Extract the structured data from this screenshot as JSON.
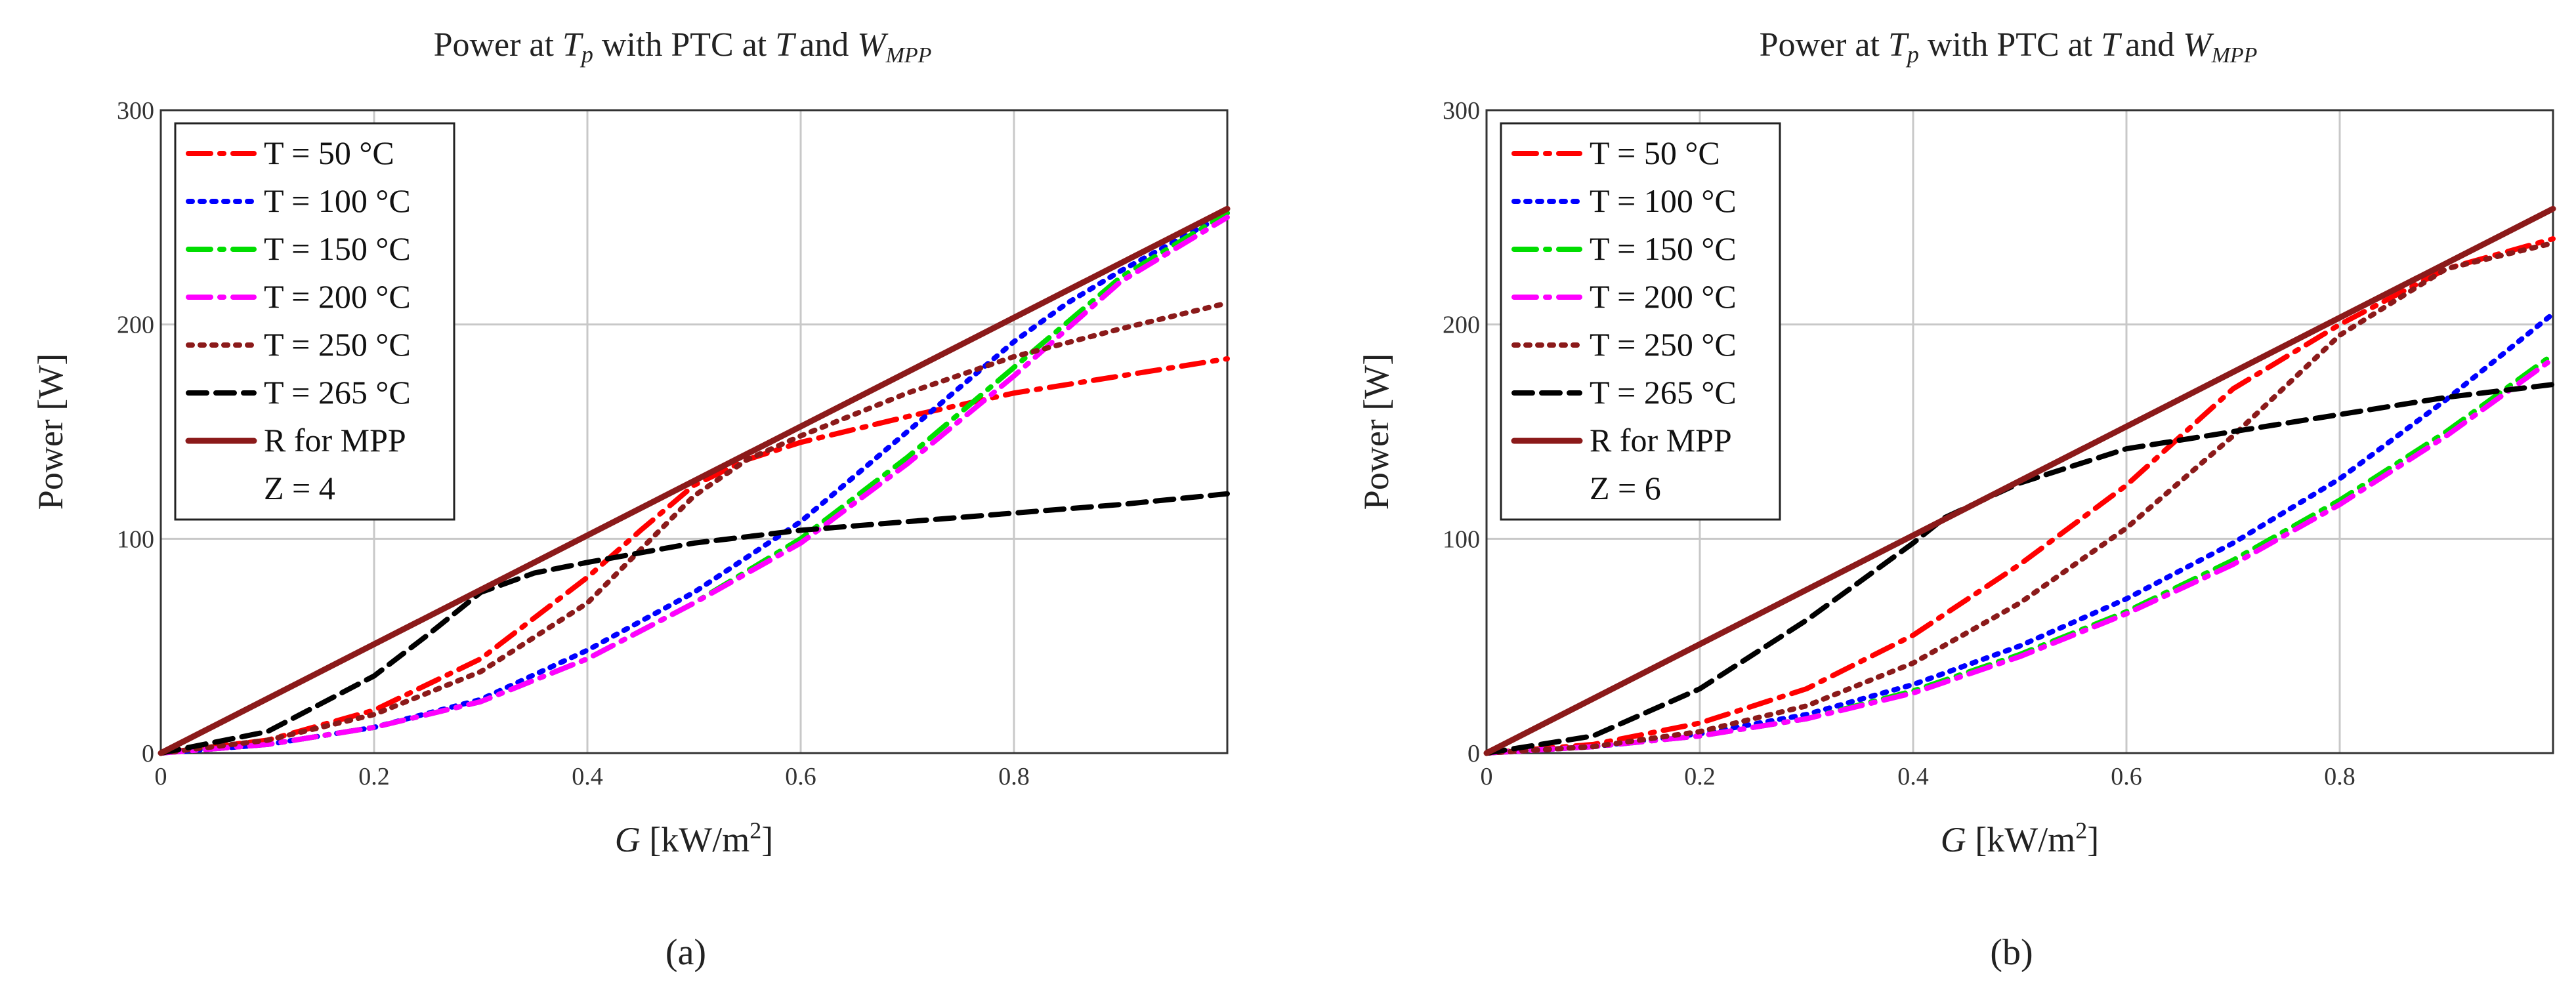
{
  "chart_data": [
    {
      "type": "line",
      "title": "Power at Tp with PTC at T and WMPP",
      "title_parts": {
        "pre": "Power at ",
        "t": "T",
        "p": "p",
        "mid": " with PTC at ",
        "t2": "T",
        "and": "and ",
        "w": "W",
        "mpp": "MPP"
      },
      "xlabel": {
        "g": "G",
        "unit": " [kW/m",
        "sup": "2",
        "close": "]"
      },
      "ylabel": "Power [W]",
      "xlim": [
        0,
        1.0
      ],
      "ylim": [
        0,
        300
      ],
      "xticks": [
        0,
        0.2,
        0.4,
        0.6,
        0.8
      ],
      "xtick_labels": [
        "0",
        "0.2",
        "0.4",
        "0.6",
        "0.8"
      ],
      "yticks": [
        0,
        100,
        200,
        300
      ],
      "ytick_labels": [
        "0",
        "100",
        "200",
        "300"
      ],
      "grid": true,
      "legend_position": "top-left",
      "legend_extra": "Z = 4",
      "caption": "(a)",
      "series": [
        {
          "name": "T = 50 °C",
          "color": "#ff0000",
          "dash": "dashdot",
          "x": [
            0,
            0.1,
            0.2,
            0.3,
            0.4,
            0.45,
            0.5,
            0.55,
            0.6,
            0.7,
            0.8,
            0.9,
            1.0
          ],
          "y": [
            0,
            6,
            20,
            44,
            82,
            104,
            125,
            137,
            145,
            157,
            168,
            176,
            184
          ]
        },
        {
          "name": "T = 100 °C",
          "color": "#0000ff",
          "dash": "dot",
          "x": [
            0,
            0.1,
            0.2,
            0.3,
            0.4,
            0.5,
            0.6,
            0.7,
            0.8,
            0.85,
            0.9,
            1.0
          ],
          "y": [
            0,
            4,
            12,
            25,
            48,
            75,
            108,
            150,
            192,
            210,
            225,
            252
          ]
        },
        {
          "name": "T = 150 °C",
          "color": "#00dd00",
          "dash": "dashdot",
          "x": [
            0,
            0.1,
            0.2,
            0.3,
            0.4,
            0.5,
            0.6,
            0.7,
            0.8,
            0.9,
            1.0
          ],
          "y": [
            0,
            4,
            12,
            24,
            44,
            70,
            100,
            138,
            180,
            222,
            252
          ]
        },
        {
          "name": "T = 200 °C",
          "color": "#ff00ff",
          "dash": "dashdot",
          "x": [
            0,
            0.1,
            0.2,
            0.3,
            0.4,
            0.5,
            0.6,
            0.7,
            0.8,
            0.9,
            1.0
          ],
          "y": [
            0,
            4,
            12,
            24,
            44,
            70,
            98,
            135,
            176,
            220,
            250
          ]
        },
        {
          "name": "T = 250 °C",
          "color": "#8b1a1a",
          "dash": "dot",
          "x": [
            0,
            0.1,
            0.2,
            0.3,
            0.4,
            0.5,
            0.55,
            0.6,
            0.7,
            0.8,
            0.9,
            1.0
          ],
          "y": [
            0,
            6,
            18,
            38,
            70,
            120,
            137,
            148,
            168,
            185,
            198,
            210
          ]
        },
        {
          "name": "T = 265 °C",
          "color": "#000000",
          "dash": "dash",
          "x": [
            0,
            0.1,
            0.2,
            0.25,
            0.3,
            0.35,
            0.4,
            0.5,
            0.6,
            0.7,
            0.8,
            0.9,
            1.0
          ],
          "y": [
            0,
            10,
            36,
            55,
            75,
            84,
            89,
            98,
            104,
            108,
            112,
            116,
            121
          ]
        },
        {
          "name": "R for MPP",
          "color": "#8b1a1a",
          "dash": "solid",
          "x": [
            0,
            1.0
          ],
          "y": [
            0,
            254
          ]
        }
      ]
    },
    {
      "type": "line",
      "title": "Power at Tp with PTC at T and WMPP",
      "title_parts": {
        "pre": "Power at ",
        "t": "T",
        "p": "p",
        "mid": " with PTC at ",
        "t2": "T",
        "and": "and ",
        "w": "W",
        "mpp": "MPP"
      },
      "xlabel": {
        "g": "G",
        "unit": " [kW/m",
        "sup": "2",
        "close": "]"
      },
      "ylabel": "Power [W]",
      "xlim": [
        0,
        1.0
      ],
      "ylim": [
        0,
        300
      ],
      "xticks": [
        0,
        0.2,
        0.4,
        0.6,
        0.8
      ],
      "xtick_labels": [
        "0",
        "0.2",
        "0.4",
        "0.6",
        "0.8"
      ],
      "yticks": [
        0,
        100,
        200,
        300
      ],
      "ytick_labels": [
        "0",
        "100",
        "200",
        "300"
      ],
      "grid": true,
      "legend_position": "top-left",
      "legend_extra": "Z = 6",
      "caption": "(b)",
      "series": [
        {
          "name": "T = 50 °C",
          "color": "#ff0000",
          "dash": "dashdot",
          "x": [
            0,
            0.1,
            0.2,
            0.3,
            0.4,
            0.5,
            0.6,
            0.7,
            0.8,
            0.9,
            1.0
          ],
          "y": [
            0,
            4,
            14,
            30,
            55,
            88,
            125,
            170,
            200,
            226,
            240
          ]
        },
        {
          "name": "T = 100 °C",
          "color": "#0000ff",
          "dash": "dot",
          "x": [
            0,
            0.1,
            0.2,
            0.3,
            0.4,
            0.5,
            0.6,
            0.7,
            0.8,
            0.9,
            1.0
          ],
          "y": [
            0,
            3,
            9,
            18,
            32,
            50,
            72,
            98,
            128,
            165,
            205
          ]
        },
        {
          "name": "T = 150 °C",
          "color": "#00dd00",
          "dash": "dashdot",
          "x": [
            0,
            0.1,
            0.2,
            0.3,
            0.4,
            0.5,
            0.6,
            0.7,
            0.8,
            0.9,
            1.0
          ],
          "y": [
            0,
            3,
            8,
            16,
            29,
            46,
            66,
            90,
            118,
            150,
            186
          ]
        },
        {
          "name": "T = 200 °C",
          "color": "#ff00ff",
          "dash": "dashdot",
          "x": [
            0,
            0.1,
            0.2,
            0.3,
            0.4,
            0.5,
            0.6,
            0.7,
            0.8,
            0.9,
            1.0
          ],
          "y": [
            0,
            3,
            8,
            16,
            28,
            45,
            65,
            88,
            116,
            148,
            184
          ]
        },
        {
          "name": "T = 250 °C",
          "color": "#8b1a1a",
          "dash": "dot",
          "x": [
            0,
            0.1,
            0.2,
            0.3,
            0.4,
            0.5,
            0.6,
            0.7,
            0.8,
            0.9,
            1.0
          ],
          "y": [
            0,
            3,
            10,
            22,
            42,
            70,
            105,
            148,
            195,
            226,
            238
          ]
        },
        {
          "name": "T = 265 °C",
          "color": "#000000",
          "dash": "dash",
          "x": [
            0,
            0.1,
            0.2,
            0.3,
            0.4,
            0.43,
            0.5,
            0.6,
            0.7,
            0.8,
            0.9,
            1.0
          ],
          "y": [
            0,
            8,
            30,
            62,
            98,
            110,
            126,
            142,
            150,
            158,
            166,
            172
          ]
        },
        {
          "name": "R for MPP",
          "color": "#8b1a1a",
          "dash": "solid",
          "x": [
            0,
            1.0
          ],
          "y": [
            0,
            254
          ]
        }
      ]
    }
  ]
}
